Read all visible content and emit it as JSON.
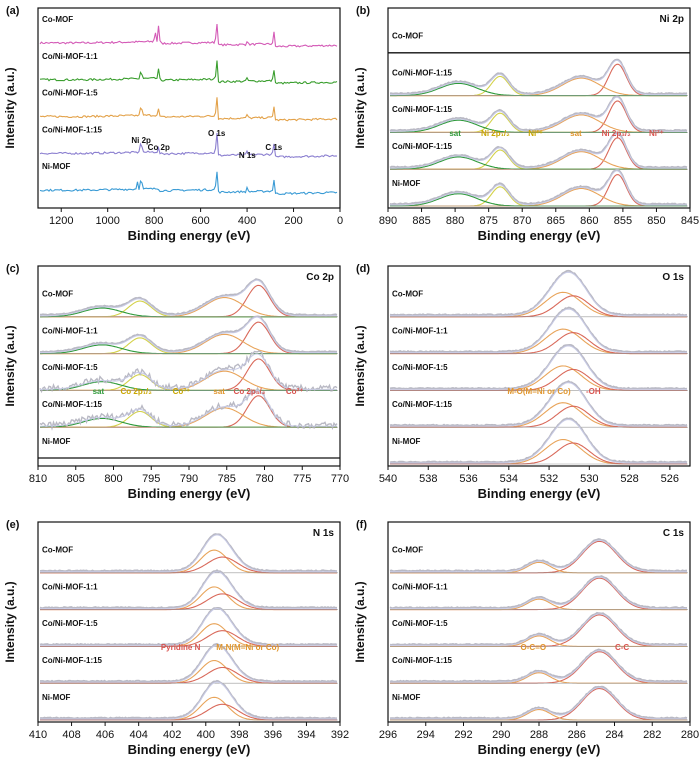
{
  "colors": {
    "raw": "#b9b9c4",
    "envelope": "#c8cbe6",
    "baseline": "#9a9a9a",
    "red": "#d9695a",
    "orange": "#e8a45a",
    "yellow": "#d4d24a",
    "green": "#2e9a3a",
    "text_red": "#d9534f",
    "text_orange": "#e0952c",
    "text_green": "#2e9a3a",
    "text_yellow": "#c9a600"
  },
  "chart_data": [
    {
      "id": "a",
      "type": "line",
      "panel_letter": "(a)",
      "title": "",
      "xlabel": "Binding energy (eV)",
      "ylabel": "Intensity (a.u.)",
      "xlim": [
        1300,
        0
      ],
      "xticks": [
        1200,
        1000,
        800,
        600,
        400,
        200,
        0
      ],
      "series": [
        {
          "name": "Co-MOF",
          "color": "#d45bb7",
          "peaks": [
            [
              780,
              0.55
            ],
            [
              796,
              0.35
            ],
            [
              531,
              0.8
            ],
            [
              285,
              0.45
            ],
            [
              399,
              0.12
            ]
          ]
        },
        {
          "name": "Co/Ni-MOF-1:1",
          "color": "#3a9e2e",
          "peaks": [
            [
              856,
              0.35
            ],
            [
              780,
              0.3
            ],
            [
              531,
              0.8
            ],
            [
              285,
              0.45
            ],
            [
              399,
              0.12
            ]
          ]
        },
        {
          "name": "Co/Ni-MOF-1:5",
          "color": "#e3a24a",
          "peaks": [
            [
              856,
              0.45
            ],
            [
              780,
              0.2
            ],
            [
              531,
              0.8
            ],
            [
              285,
              0.45
            ],
            [
              399,
              0.12
            ]
          ]
        },
        {
          "name": "Co/Ni-MOF-1:15",
          "color": "#8b7fd0",
          "peaks": [
            [
              856,
              0.5
            ],
            [
              780,
              0.12
            ],
            [
              531,
              0.8
            ],
            [
              285,
              0.45
            ],
            [
              399,
              0.12
            ]
          ]
        },
        {
          "name": "Ni-MOF",
          "color": "#3a9bd5",
          "peaks": [
            [
              856,
              0.5
            ],
            [
              873,
              0.25
            ],
            [
              531,
              0.75
            ],
            [
              285,
              0.45
            ],
            [
              399,
              0.12
            ]
          ]
        }
      ],
      "annotations": [
        {
          "text": "Ni 2p",
          "x": 856
        },
        {
          "text": "Co 2p",
          "x": 780
        },
        {
          "text": "O 1s",
          "x": 531
        },
        {
          "text": "N 1s",
          "x": 399
        },
        {
          "text": "C 1s",
          "x": 285
        }
      ]
    },
    {
      "id": "b",
      "type": "line",
      "panel_letter": "(b)",
      "title": "Ni 2p",
      "xlabel": "Binding energy (eV)",
      "ylabel": "Intensity (a.u.)",
      "xlim": [
        890,
        845
      ],
      "xticks": [
        890,
        885,
        880,
        875,
        870,
        865,
        860,
        855,
        850,
        845
      ],
      "series_labels": [
        "Co-MOF",
        "Co/Ni-MOF-1:15",
        "Co/Ni-MOF-1:15",
        "Co/Ni-MOF-1:15",
        "Ni-MOF"
      ],
      "peaks": [
        {
          "center": 855.8,
          "width": 1.3,
          "color": "red",
          "height": 0.9
        },
        {
          "center": 873.3,
          "width": 1.3,
          "color": "yellow",
          "height": 0.55
        },
        {
          "center": 861.2,
          "width": 2.8,
          "color": "orange",
          "height": 0.5
        },
        {
          "center": 879.5,
          "width": 2.8,
          "color": "green",
          "height": 0.35
        }
      ],
      "annotations": [
        {
          "text": "Ni 2p₃/₂",
          "x": 856,
          "color": "red"
        },
        {
          "text": "Ni²⁺",
          "x": 850,
          "color": "red"
        },
        {
          "text": "Ni 2p₁/₂",
          "x": 874,
          "color": "yellow"
        },
        {
          "text": "Ni²⁺",
          "x": 868,
          "color": "yellow"
        },
        {
          "text": "sat",
          "x": 862,
          "color": "orange"
        },
        {
          "text": "sat",
          "x": 880,
          "color": "green"
        }
      ]
    },
    {
      "id": "c",
      "type": "line",
      "panel_letter": "(c)",
      "title": "Co 2p",
      "xlabel": "Binding energy (eV)",
      "ylabel": "Intensity (a.u.)",
      "xlim": [
        810,
        770
      ],
      "xticks": [
        810,
        805,
        800,
        795,
        790,
        785,
        780,
        775,
        770
      ],
      "series_labels": [
        "Co-MOF",
        "Co/Ni-MOF-1:1",
        "Co/Ni-MOF-1:5",
        "Co/Ni-MOF-1:15",
        "Ni-MOF"
      ],
      "peaks": [
        {
          "center": 780.8,
          "width": 1.5,
          "color": "red",
          "height": 0.9
        },
        {
          "center": 796.5,
          "width": 1.5,
          "color": "yellow",
          "height": 0.45
        },
        {
          "center": 785.3,
          "width": 2.5,
          "color": "orange",
          "height": 0.55
        },
        {
          "center": 801.5,
          "width": 2.5,
          "color": "green",
          "height": 0.25
        }
      ],
      "annotations": [
        {
          "text": "Co 2p₃/₂",
          "x": 782,
          "color": "red"
        },
        {
          "text": "Co²⁺",
          "x": 776,
          "color": "red"
        },
        {
          "text": "Co 2p₁/₂",
          "x": 797,
          "color": "yellow"
        },
        {
          "text": "Co²⁺",
          "x": 791,
          "color": "yellow"
        },
        {
          "text": "sat",
          "x": 786,
          "color": "orange"
        },
        {
          "text": "sat",
          "x": 802,
          "color": "green"
        }
      ]
    },
    {
      "id": "d",
      "type": "line",
      "panel_letter": "(d)",
      "title": "O 1s",
      "xlabel": "Binding energy (eV)",
      "ylabel": "Intensity (a.u.)",
      "xlim": [
        540,
        525
      ],
      "xticks": [
        540,
        538,
        536,
        534,
        532,
        530,
        528,
        526
      ],
      "series_labels": [
        "Co-MOF",
        "Co/Ni-MOF-1:1",
        "Co/Ni-MOF-1:5",
        "Co/Ni-MOF-1:15",
        "Ni-MOF"
      ],
      "peaks": [
        {
          "center": 531.3,
          "width": 0.9,
          "color": "orange",
          "height": 0.7
        },
        {
          "center": 530.8,
          "width": 0.8,
          "color": "red",
          "height": 0.6
        }
      ],
      "annotations": [
        {
          "text": "M-O(M=Ni or Co)",
          "x": 532.5,
          "color": "orange"
        },
        {
          "text": "-OH",
          "x": 529.8,
          "color": "red"
        }
      ]
    },
    {
      "id": "e",
      "type": "line",
      "panel_letter": "(e)",
      "title": "N 1s",
      "xlabel": "Binding energy (eV)",
      "ylabel": "Intensity (a.u.)",
      "xlim": [
        410,
        392
      ],
      "xticks": [
        410,
        408,
        406,
        404,
        402,
        400,
        398,
        396,
        394,
        392
      ],
      "series_labels": [
        "Co-MOF",
        "Co/Ni-MOF-1:1",
        "Co/Ni-MOF-1:5",
        "Co/Ni-MOF-1:15",
        "Ni-MOF"
      ],
      "peaks": [
        {
          "center": 399.5,
          "width": 0.8,
          "color": "orange",
          "height": 0.65
        },
        {
          "center": 399.0,
          "width": 0.9,
          "color": "red",
          "height": 0.45
        }
      ],
      "annotations": [
        {
          "text": "Pyridine N",
          "x": 401.5,
          "color": "red"
        },
        {
          "text": "M-N(M=Ni or Co)",
          "x": 397.5,
          "color": "orange"
        }
      ]
    },
    {
      "id": "f",
      "type": "line",
      "panel_letter": "(f)",
      "title": "C 1s",
      "xlabel": "Binding energy (eV)",
      "ylabel": "Intensity (a.u.)",
      "xlim": [
        296,
        280
      ],
      "xticks": [
        296,
        294,
        292,
        290,
        288,
        286,
        284,
        282,
        280
      ],
      "series_labels": [
        "Co-MOF",
        "Co/Ni-MOF-1:1",
        "Co/Ni-MOF-1:5",
        "Co/Ni-MOF-1:15",
        "Ni-MOF"
      ],
      "peaks": [
        {
          "center": 284.8,
          "width": 0.9,
          "color": "red",
          "height": 0.9
        },
        {
          "center": 288.0,
          "width": 0.6,
          "color": "orange",
          "height": 0.3
        }
      ],
      "annotations": [
        {
          "text": "O-C=O",
          "x": 288.3,
          "color": "orange"
        },
        {
          "text": "C-C",
          "x": 283.6,
          "color": "red"
        }
      ]
    }
  ]
}
